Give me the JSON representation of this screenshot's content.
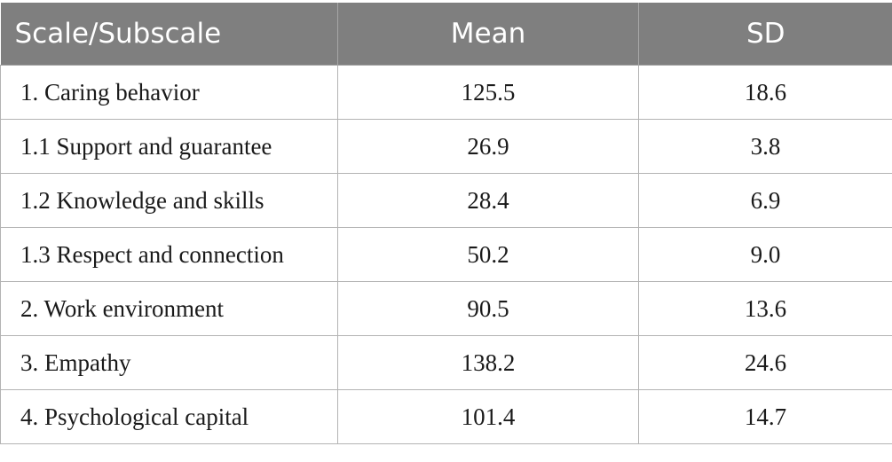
{
  "table": {
    "headers": [
      "Scale/Subscale",
      "Mean",
      "SD"
    ],
    "rows": [
      {
        "label": "1. Caring behavior",
        "mean": "125.5",
        "sd": "18.6"
      },
      {
        "label": "1.1 Support and guarantee",
        "mean": "26.9",
        "sd": "3.8"
      },
      {
        "label": "1.2 Knowledge and skills",
        "mean": "28.4",
        "sd": "6.9"
      },
      {
        "label": "1.3 Respect and connection",
        "mean": "50.2",
        "sd": "9.0"
      },
      {
        "label": "2. Work environment",
        "mean": "90.5",
        "sd": "13.6"
      },
      {
        "label": "3. Empathy",
        "mean": "138.2",
        "sd": "24.6"
      },
      {
        "label": "4. Psychological capital",
        "mean": "101.4",
        "sd": "14.7"
      }
    ]
  },
  "colors": {
    "header_background": "#7f7f7f",
    "header_text": "#ffffff",
    "grid_lines": "#b3b3b3"
  }
}
